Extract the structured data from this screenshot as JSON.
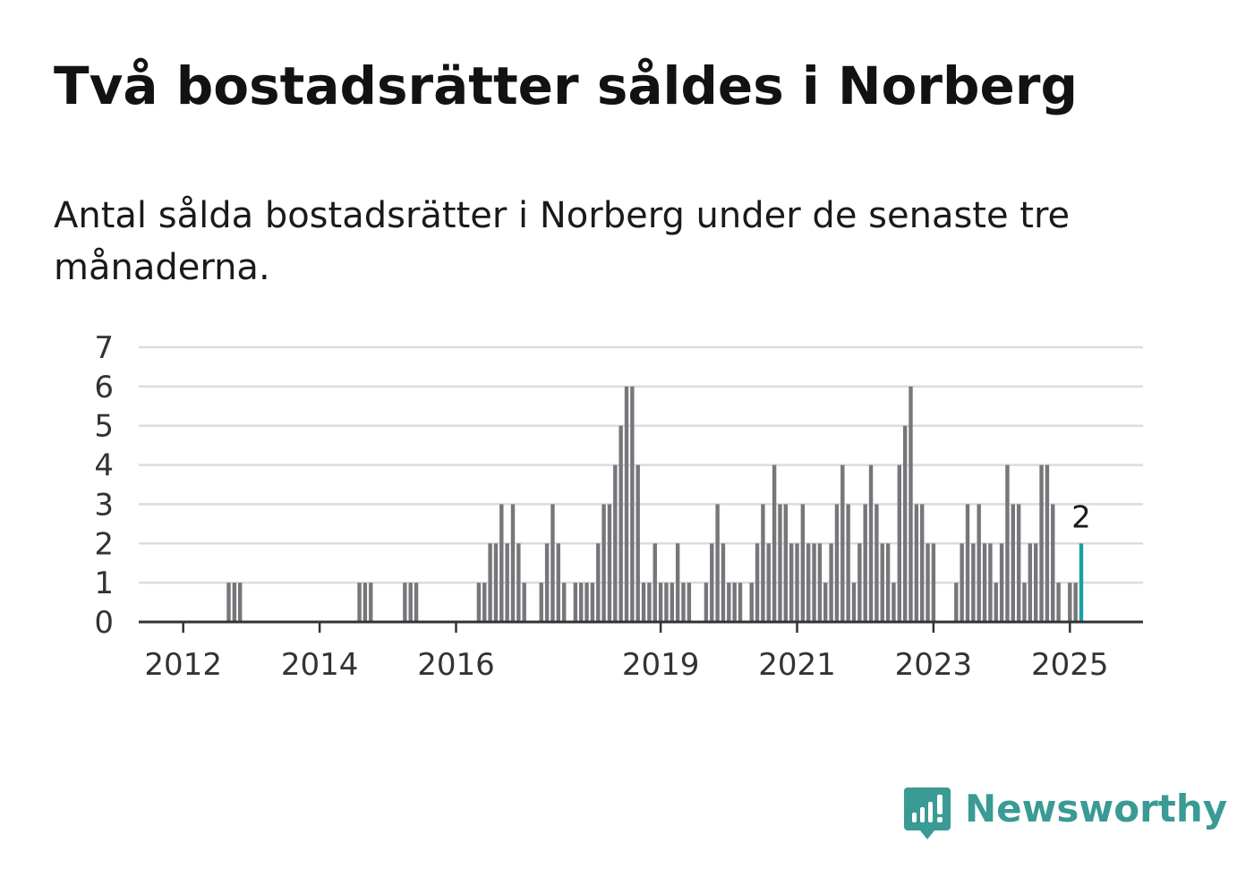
{
  "title": "Två bostadsrätter såldes i Norberg",
  "subtitle": "Antal sålda bostadsrätter i Norberg under de senaste tre månaderna.",
  "brand": {
    "name": "Newsworthy",
    "icon": "newsworthy-logo-icon",
    "color": "#3a9a94"
  },
  "chart_data": {
    "type": "bar",
    "title": "",
    "xlabel": "",
    "ylabel": "",
    "ylim": [
      0,
      7
    ],
    "yticks": [
      0,
      1,
      2,
      3,
      4,
      5,
      6,
      7
    ],
    "grid": true,
    "bar_color": "#76767b",
    "highlight_color": "#17a2a0",
    "x_start": "2011-01",
    "x_end": "2025-12",
    "x_tick_labels": [
      {
        "label": "2012",
        "date": "2012-01"
      },
      {
        "label": "2014",
        "date": "2014-01"
      },
      {
        "label": "2016",
        "date": "2016-01"
      },
      {
        "label": "2019",
        "date": "2019-01"
      },
      {
        "label": "2021",
        "date": "2021-01"
      },
      {
        "label": "2023",
        "date": "2023-01"
      },
      {
        "label": "2025",
        "date": "2025-01"
      }
    ],
    "data_labels": [
      {
        "date": "2025-03",
        "text": "2"
      }
    ],
    "highlight": [
      "2025-03"
    ],
    "points": [
      {
        "x": "2012-09",
        "y": 1
      },
      {
        "x": "2012-10",
        "y": 1
      },
      {
        "x": "2012-11",
        "y": 1
      },
      {
        "x": "2014-08",
        "y": 1
      },
      {
        "x": "2014-09",
        "y": 1
      },
      {
        "x": "2014-10",
        "y": 1
      },
      {
        "x": "2015-04",
        "y": 1
      },
      {
        "x": "2015-05",
        "y": 1
      },
      {
        "x": "2015-06",
        "y": 1
      },
      {
        "x": "2016-05",
        "y": 1
      },
      {
        "x": "2016-06",
        "y": 1
      },
      {
        "x": "2016-07",
        "y": 2
      },
      {
        "x": "2016-08",
        "y": 2
      },
      {
        "x": "2016-09",
        "y": 3
      },
      {
        "x": "2016-10",
        "y": 2
      },
      {
        "x": "2016-11",
        "y": 3
      },
      {
        "x": "2016-12",
        "y": 2
      },
      {
        "x": "2017-01",
        "y": 1
      },
      {
        "x": "2017-04",
        "y": 1
      },
      {
        "x": "2017-05",
        "y": 2
      },
      {
        "x": "2017-06",
        "y": 3
      },
      {
        "x": "2017-07",
        "y": 2
      },
      {
        "x": "2017-08",
        "y": 1
      },
      {
        "x": "2017-10",
        "y": 1
      },
      {
        "x": "2017-11",
        "y": 1
      },
      {
        "x": "2017-12",
        "y": 1
      },
      {
        "x": "2018-01",
        "y": 1
      },
      {
        "x": "2018-02",
        "y": 2
      },
      {
        "x": "2018-03",
        "y": 3
      },
      {
        "x": "2018-04",
        "y": 3
      },
      {
        "x": "2018-05",
        "y": 4
      },
      {
        "x": "2018-06",
        "y": 5
      },
      {
        "x": "2018-07",
        "y": 6
      },
      {
        "x": "2018-08",
        "y": 6
      },
      {
        "x": "2018-09",
        "y": 4
      },
      {
        "x": "2018-10",
        "y": 1
      },
      {
        "x": "2018-11",
        "y": 1
      },
      {
        "x": "2018-12",
        "y": 2
      },
      {
        "x": "2019-01",
        "y": 1
      },
      {
        "x": "2019-02",
        "y": 1
      },
      {
        "x": "2019-03",
        "y": 1
      },
      {
        "x": "2019-04",
        "y": 2
      },
      {
        "x": "2019-05",
        "y": 1
      },
      {
        "x": "2019-06",
        "y": 1
      },
      {
        "x": "2019-09",
        "y": 1
      },
      {
        "x": "2019-10",
        "y": 2
      },
      {
        "x": "2019-11",
        "y": 3
      },
      {
        "x": "2019-12",
        "y": 2
      },
      {
        "x": "2020-01",
        "y": 1
      },
      {
        "x": "2020-02",
        "y": 1
      },
      {
        "x": "2020-03",
        "y": 1
      },
      {
        "x": "2020-05",
        "y": 1
      },
      {
        "x": "2020-06",
        "y": 2
      },
      {
        "x": "2020-07",
        "y": 3
      },
      {
        "x": "2020-08",
        "y": 2
      },
      {
        "x": "2020-09",
        "y": 4
      },
      {
        "x": "2020-10",
        "y": 3
      },
      {
        "x": "2020-11",
        "y": 3
      },
      {
        "x": "2020-12",
        "y": 2
      },
      {
        "x": "2021-01",
        "y": 2
      },
      {
        "x": "2021-02",
        "y": 3
      },
      {
        "x": "2021-03",
        "y": 2
      },
      {
        "x": "2021-04",
        "y": 2
      },
      {
        "x": "2021-05",
        "y": 2
      },
      {
        "x": "2021-06",
        "y": 1
      },
      {
        "x": "2021-07",
        "y": 2
      },
      {
        "x": "2021-08",
        "y": 3
      },
      {
        "x": "2021-09",
        "y": 4
      },
      {
        "x": "2021-10",
        "y": 3
      },
      {
        "x": "2021-11",
        "y": 1
      },
      {
        "x": "2021-12",
        "y": 2
      },
      {
        "x": "2022-01",
        "y": 3
      },
      {
        "x": "2022-02",
        "y": 4
      },
      {
        "x": "2022-03",
        "y": 3
      },
      {
        "x": "2022-04",
        "y": 2
      },
      {
        "x": "2022-05",
        "y": 2
      },
      {
        "x": "2022-06",
        "y": 1
      },
      {
        "x": "2022-07",
        "y": 4
      },
      {
        "x": "2022-08",
        "y": 5
      },
      {
        "x": "2022-09",
        "y": 6
      },
      {
        "x": "2022-10",
        "y": 3
      },
      {
        "x": "2022-11",
        "y": 3
      },
      {
        "x": "2022-12",
        "y": 2
      },
      {
        "x": "2023-01",
        "y": 2
      },
      {
        "x": "2023-05",
        "y": 1
      },
      {
        "x": "2023-06",
        "y": 2
      },
      {
        "x": "2023-07",
        "y": 3
      },
      {
        "x": "2023-08",
        "y": 2
      },
      {
        "x": "2023-09",
        "y": 3
      },
      {
        "x": "2023-10",
        "y": 2
      },
      {
        "x": "2023-11",
        "y": 2
      },
      {
        "x": "2023-12",
        "y": 1
      },
      {
        "x": "2024-01",
        "y": 2
      },
      {
        "x": "2024-02",
        "y": 4
      },
      {
        "x": "2024-03",
        "y": 3
      },
      {
        "x": "2024-04",
        "y": 3
      },
      {
        "x": "2024-05",
        "y": 1
      },
      {
        "x": "2024-06",
        "y": 2
      },
      {
        "x": "2024-07",
        "y": 2
      },
      {
        "x": "2024-08",
        "y": 4
      },
      {
        "x": "2024-09",
        "y": 4
      },
      {
        "x": "2024-10",
        "y": 3
      },
      {
        "x": "2024-11",
        "y": 1
      },
      {
        "x": "2025-01",
        "y": 1
      },
      {
        "x": "2025-02",
        "y": 1
      },
      {
        "x": "2025-03",
        "y": 2
      }
    ]
  }
}
